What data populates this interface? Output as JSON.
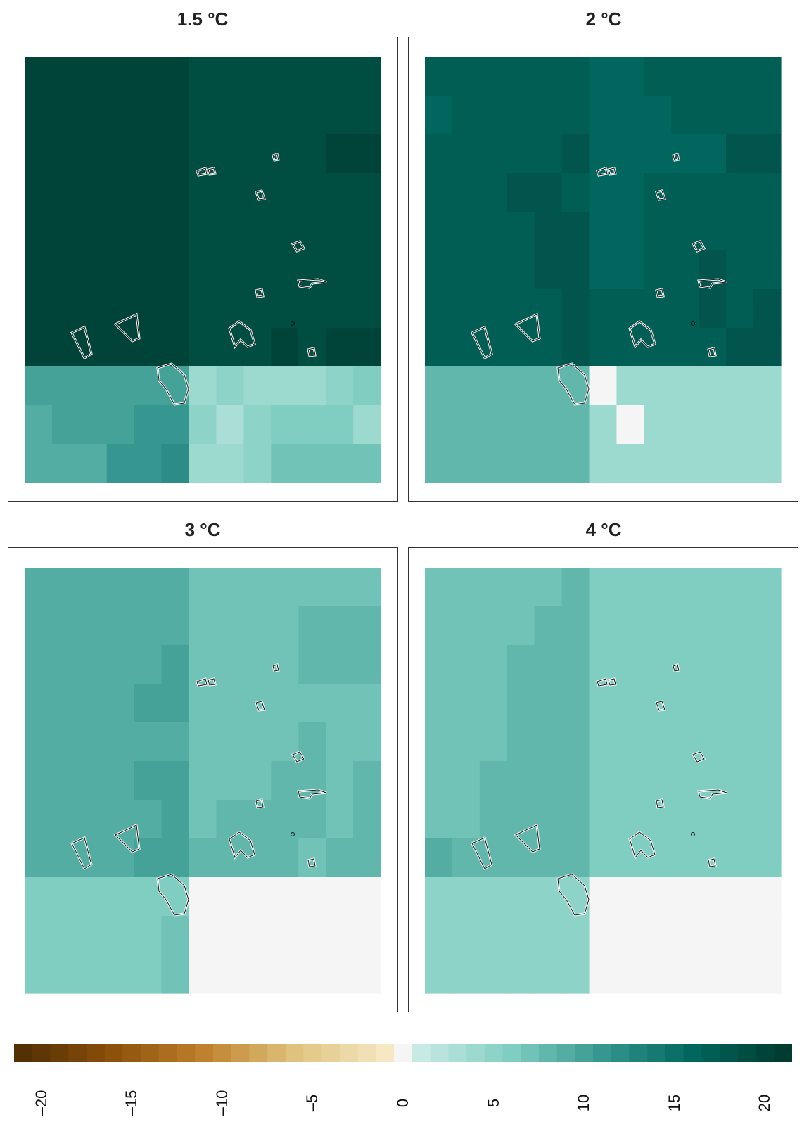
{
  "panels": [
    {
      "title": "1.5 °C"
    },
    {
      "title": "2 °C"
    },
    {
      "title": "3 °C"
    },
    {
      "title": "4 °C"
    }
  ],
  "colorbar": {
    "ticks": [
      "–20",
      "–15",
      "–10",
      "–5",
      "0",
      "5",
      "10",
      "15",
      "20"
    ],
    "range": [
      -21,
      21
    ],
    "colors_negative": [
      "#543005",
      "#8c510a",
      "#bf812d",
      "#dfc27d",
      "#f6e8c3"
    ],
    "color_zero": "#f5f5f5",
    "colors_positive": [
      "#c7eae5",
      "#80cdc1",
      "#35978f",
      "#01665e",
      "#003c30"
    ]
  },
  "chart_data": [
    {
      "type": "heatmap",
      "title": "1.5 °C",
      "cols": 13,
      "rows": 11,
      "values": [
        [
          20,
          20,
          20,
          20,
          20,
          20,
          19,
          19,
          19,
          19,
          19,
          19,
          19
        ],
        [
          20,
          20,
          20,
          20,
          20,
          20,
          19,
          19,
          19,
          19,
          19,
          19,
          19
        ],
        [
          20,
          20,
          20,
          20,
          20,
          20,
          19,
          19,
          19,
          19,
          19,
          20,
          20
        ],
        [
          20,
          20,
          20,
          20,
          20,
          20,
          19,
          19,
          19,
          19,
          19,
          19,
          19
        ],
        [
          20,
          20,
          20,
          20,
          20,
          20,
          19,
          19,
          19,
          19,
          19,
          19,
          19
        ],
        [
          20,
          20,
          20,
          20,
          20,
          20,
          19,
          19,
          19,
          19,
          19,
          19,
          19
        ],
        [
          20,
          20,
          20,
          20,
          20,
          20,
          19,
          19,
          19,
          19,
          19,
          19,
          19
        ],
        [
          20,
          20,
          20,
          20,
          20,
          20,
          19,
          19,
          19,
          20,
          19,
          20,
          20
        ],
        [
          10,
          10,
          10,
          10,
          10,
          10,
          4,
          5,
          4,
          4,
          4,
          5,
          6
        ],
        [
          9,
          10,
          10,
          10,
          11,
          11,
          5,
          3,
          5,
          6,
          6,
          6,
          4
        ],
        [
          9,
          9,
          9,
          11,
          11,
          12,
          4,
          4,
          5,
          7,
          7,
          7,
          7
        ]
      ]
    },
    {
      "type": "heatmap",
      "title": "2 °C",
      "cols": 13,
      "rows": 11,
      "values": [
        [
          17,
          17,
          17,
          17,
          17,
          17,
          16,
          16,
          17,
          17,
          17,
          17,
          17
        ],
        [
          16,
          17,
          17,
          17,
          17,
          17,
          16,
          16,
          16,
          17,
          17,
          17,
          17
        ],
        [
          17,
          17,
          17,
          17,
          17,
          18,
          16,
          16,
          16,
          16,
          16,
          18,
          18
        ],
        [
          17,
          17,
          17,
          18,
          18,
          17,
          16,
          16,
          17,
          17,
          17,
          17,
          17
        ],
        [
          17,
          17,
          17,
          17,
          18,
          18,
          16,
          16,
          17,
          17,
          17,
          17,
          17
        ],
        [
          17,
          17,
          17,
          17,
          18,
          18,
          16,
          16,
          17,
          17,
          18,
          17,
          17
        ],
        [
          17,
          17,
          17,
          17,
          17,
          18,
          17,
          17,
          17,
          17,
          18,
          17,
          18
        ],
        [
          17,
          17,
          17,
          17,
          17,
          18,
          17,
          17,
          17,
          17,
          17,
          18,
          18
        ],
        [
          8,
          8,
          8,
          8,
          8,
          8,
          0,
          4,
          4,
          4,
          4,
          4,
          4
        ],
        [
          8,
          8,
          8,
          8,
          8,
          8,
          4,
          0,
          4,
          4,
          4,
          4,
          4
        ],
        [
          8,
          8,
          8,
          8,
          8,
          8,
          4,
          4,
          4,
          4,
          4,
          4,
          4
        ]
      ]
    },
    {
      "type": "heatmap",
      "title": "3 °C",
      "cols": 13,
      "rows": 11,
      "values": [
        [
          9,
          9,
          9,
          9,
          9,
          9,
          7,
          7,
          7,
          7,
          7,
          7,
          7
        ],
        [
          9,
          9,
          9,
          9,
          9,
          9,
          7,
          7,
          7,
          7,
          8,
          8,
          8
        ],
        [
          9,
          9,
          9,
          9,
          9,
          10,
          7,
          7,
          7,
          7,
          8,
          8,
          8
        ],
        [
          9,
          9,
          9,
          9,
          10,
          10,
          7,
          7,
          7,
          7,
          7,
          7,
          7
        ],
        [
          9,
          9,
          9,
          9,
          9,
          9,
          7,
          7,
          7,
          7,
          8,
          7,
          7
        ],
        [
          9,
          9,
          9,
          9,
          10,
          10,
          7,
          7,
          7,
          8,
          8,
          7,
          8
        ],
        [
          9,
          9,
          9,
          9,
          9,
          10,
          7,
          8,
          8,
          8,
          8,
          7,
          8
        ],
        [
          9,
          9,
          9,
          9,
          10,
          10,
          8,
          8,
          8,
          8,
          7,
          8,
          8
        ],
        [
          6,
          6,
          6,
          6,
          6,
          6,
          0,
          0,
          0,
          0,
          0,
          0,
          0
        ],
        [
          6,
          6,
          6,
          6,
          6,
          7,
          0,
          0,
          0,
          0,
          0,
          0,
          0
        ],
        [
          6,
          6,
          6,
          6,
          6,
          7,
          0,
          0,
          0,
          0,
          0,
          0,
          0
        ]
      ]
    },
    {
      "type": "heatmap",
      "title": "4 °C",
      "cols": 13,
      "rows": 11,
      "values": [
        [
          7,
          7,
          7,
          7,
          7,
          8,
          6,
          6,
          6,
          6,
          6,
          6,
          6
        ],
        [
          7,
          7,
          7,
          7,
          8,
          8,
          6,
          6,
          6,
          6,
          6,
          6,
          6
        ],
        [
          7,
          7,
          7,
          8,
          8,
          8,
          6,
          6,
          6,
          6,
          6,
          6,
          6
        ],
        [
          7,
          7,
          7,
          8,
          8,
          8,
          6,
          6,
          6,
          6,
          6,
          6,
          6
        ],
        [
          7,
          7,
          7,
          8,
          8,
          8,
          6,
          6,
          6,
          6,
          6,
          6,
          6
        ],
        [
          7,
          7,
          8,
          8,
          8,
          8,
          6,
          6,
          6,
          6,
          6,
          6,
          6
        ],
        [
          7,
          7,
          8,
          8,
          8,
          8,
          6,
          6,
          6,
          6,
          6,
          6,
          6
        ],
        [
          9,
          8,
          8,
          8,
          8,
          8,
          6,
          6,
          6,
          6,
          6,
          6,
          6
        ],
        [
          5,
          5,
          5,
          5,
          5,
          5,
          0,
          0,
          0,
          0,
          0,
          0,
          0
        ],
        [
          5,
          5,
          5,
          5,
          5,
          5,
          0,
          0,
          0,
          0,
          0,
          0,
          0
        ],
        [
          5,
          5,
          5,
          5,
          5,
          5,
          0,
          0,
          0,
          0,
          0,
          0,
          0
        ]
      ]
    }
  ]
}
